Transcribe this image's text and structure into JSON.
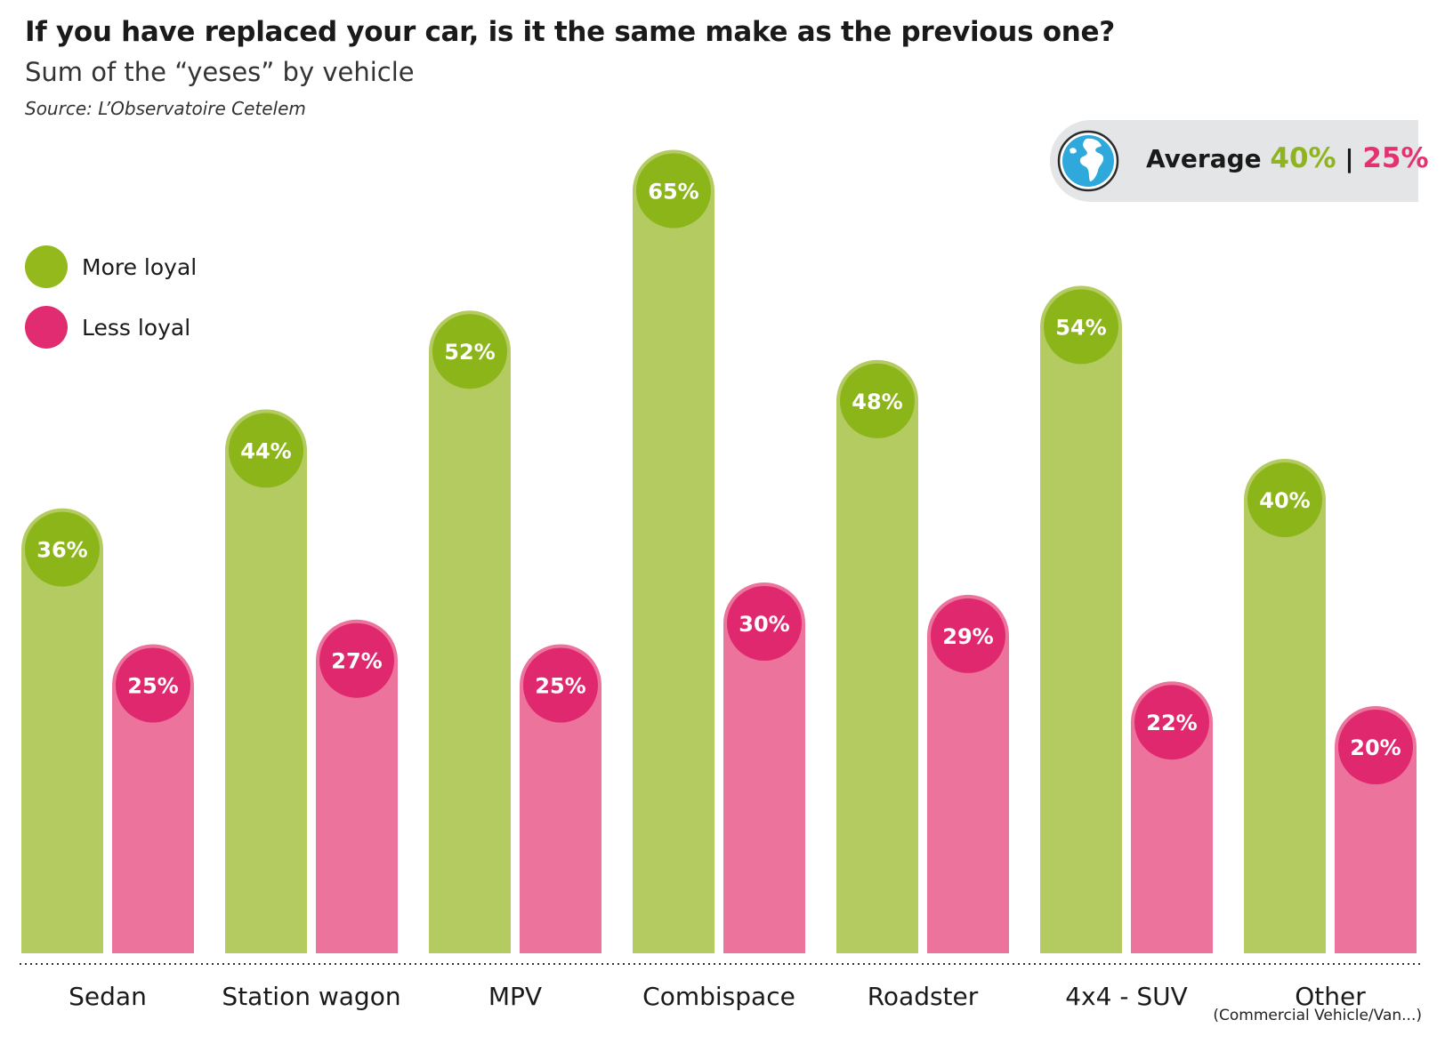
{
  "title": "If you have replaced your car, is it the same make as the previous one?",
  "subtitle": "Sum of the “yeses” by vehicle",
  "source": "Source: L’Observatoire Cetelem",
  "average": {
    "label": "Average",
    "more_loyal": "40%",
    "separator": "|",
    "less_loyal": "25%",
    "icon": "globe-icon"
  },
  "legend": [
    {
      "name": "More loyal",
      "color": "#94b91d"
    },
    {
      "name": "Less loyal",
      "color": "#e22c71"
    }
  ],
  "note": "(Commercial Vehicle/Van...)",
  "colors": {
    "more_bar": "#b3cb61",
    "more_circle": "#8cb51a",
    "less_bar": "#ec739c",
    "less_circle": "#e0286e"
  },
  "chart_data": {
    "type": "bar",
    "title": "If you have replaced your car, is it the same make as the previous one?",
    "subtitle": "Sum of the “yeses” by vehicle",
    "categories": [
      "Sedan",
      "Station wagon",
      "MPV",
      "Combispace",
      "Roadster",
      "4x4 - SUV",
      "Other"
    ],
    "series": [
      {
        "name": "More loyal",
        "values": [
          36,
          44,
          52,
          65,
          48,
          54,
          40
        ]
      },
      {
        "name": "Less loyal",
        "values": [
          25,
          27,
          25,
          30,
          29,
          22,
          20
        ]
      }
    ],
    "value_suffix": "%",
    "ylim": [
      0,
      70
    ],
    "grid": false,
    "legend_position": "top-left"
  }
}
